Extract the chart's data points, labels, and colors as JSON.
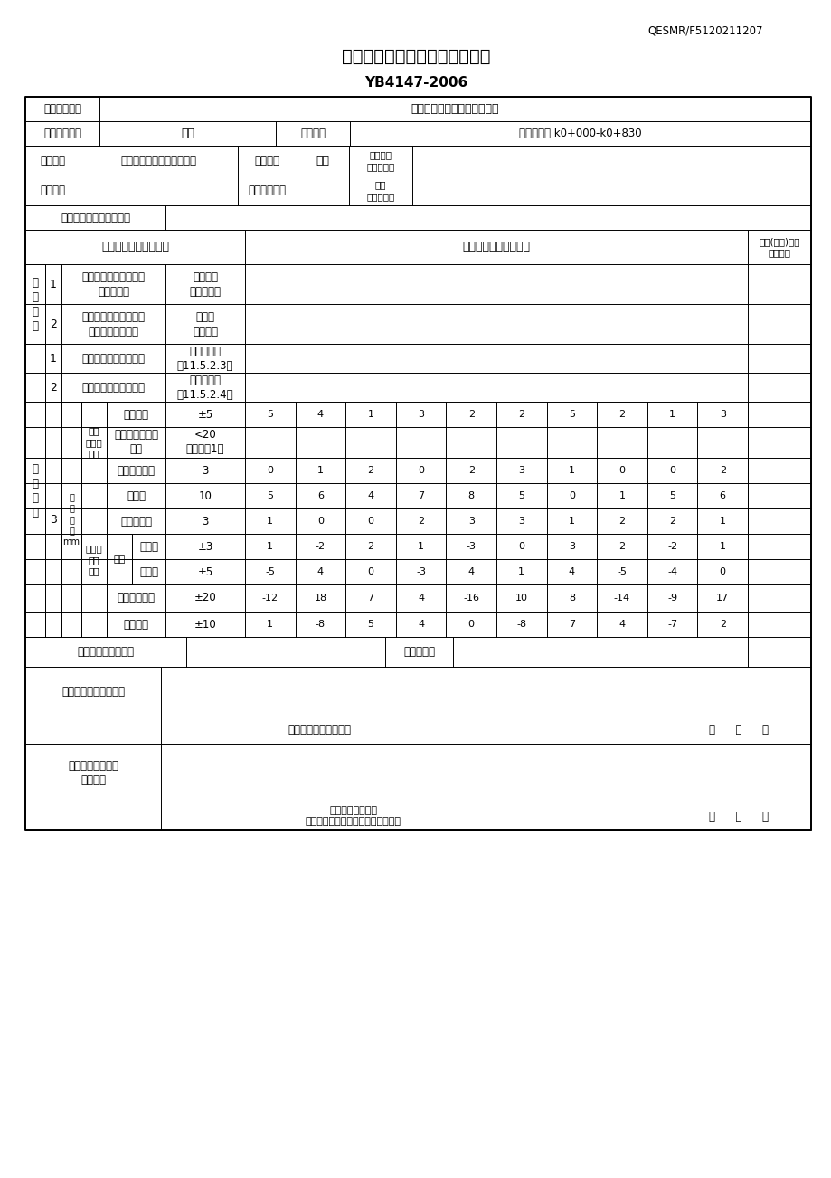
{
  "title": "侧石工程检验批质量验收记录表",
  "standard": "YB4147-2006",
  "doc_no": "QESMR/F5120211207",
  "unit_name": "长江路及报税路绿化提示工程",
  "sub_project": "侧石",
  "accept_dept": "验收部位",
  "accept_dept_val": "长江路左幅 k0+000-k0+830",
  "contractor_label": "施工单位",
  "contractor_val": "江苏沭阳绿苑花卉景观工程",
  "proj_mgr_label": "项目经理",
  "proj_mgr_val": "胡慧",
  "proj_tech_label": "项目专业\n技术负责人",
  "subcon_label": "分包单位",
  "subcon_proj_mgr_label": "分包项目经理",
  "subcon_tech_label": "分包\n技术负责人",
  "std_label": "施工执行标准名称及编号",
  "col_hdr1": "施工质量验收规范规定",
  "col_hdr2": "施工单位检查评定记录",
  "col_hdr3": "监理(建设)单位\n验收记录",
  "main_ctrl_label": "主\n控\n项\n目",
  "main_items": [
    {
      "no": "1",
      "desc": "各种原材料的品种、规\n格、标号等",
      "req": "符合规范\n和设计要求"
    },
    {
      "no": "2",
      "desc": "预制侧石、平石的混凝\n土的抗压强度等级",
      "req": "不低于\n设计规定"
    }
  ],
  "gen_label": "一\n般\n项\n目",
  "gen_items_12": [
    {
      "no": "1",
      "desc": "侧石、平石的表面质量",
      "req": "见本规范表\n第11.5.2.3条"
    },
    {
      "no": "2",
      "desc": "侧石、平石的安装要求",
      "req": "见本规范表\n第11.5.2.4条"
    }
  ],
  "tol_no": "3",
  "tol_allow_label": "允\n许\n偏\n差\nmm",
  "prefab_label": "预制\n侧石、\n平石",
  "paving_label": "侧石、\n平石\n铺设",
  "seam_label": "缝宽",
  "tol_rows": [
    {
      "item": "外形尺寸",
      "req": "±5",
      "vals": [
        5,
        4,
        1,
        3,
        2,
        2,
        5,
        2,
        1,
        3
      ]
    },
    {
      "item": "外露面缺边掉角\n长度",
      "req": "<20\n且不多于1处",
      "vals": []
    },
    {
      "item": "外露面平整度",
      "req": "3",
      "vals": [
        0,
        1,
        2,
        0,
        2,
        3,
        1,
        0,
        0,
        2
      ]
    },
    {
      "item": "顺直度",
      "req": "10",
      "vals": [
        5,
        6,
        4,
        7,
        8,
        5,
        0,
        1,
        5,
        6
      ]
    },
    {
      "item": "相邻块高差",
      "req": "3",
      "vals": [
        1,
        0,
        0,
        2,
        3,
        3,
        1,
        2,
        2,
        1
      ]
    },
    {
      "item": "直线段",
      "req": "±3",
      "vals": [
        1,
        -2,
        2,
        1,
        -3,
        0,
        3,
        2,
        -2,
        1
      ]
    },
    {
      "item": "曲线段",
      "req": "±5",
      "vals": [
        -5,
        4,
        0,
        -3,
        4,
        1,
        4,
        -5,
        -4,
        0
      ]
    },
    {
      "item": "侧石顶面高程",
      "req": "±20",
      "vals": [
        -12,
        18,
        7,
        4,
        -16,
        10,
        8,
        -14,
        -9,
        17
      ]
    },
    {
      "item": "中线高程",
      "req": "±10",
      "vals": [
        1,
        -8,
        5,
        4,
        0,
        -8,
        7,
        4,
        -7,
        2
      ]
    }
  ],
  "sign_label1": "专业工长（施工员）",
  "sign_label2": "施工班组长",
  "insp_result_label": "施工单位检查评定结果",
  "quality_insp_label": "项目专业质量检查员：",
  "supervision_label": "监理（建设）单位\n验收结论",
  "supervision_eng_label": "专业监理工程师：\n（建设单位项目专业技术负责人）：",
  "date_label": "年      月      日",
  "bg_color": "#ffffff",
  "line_color": "#000000",
  "text_color": "#000000"
}
